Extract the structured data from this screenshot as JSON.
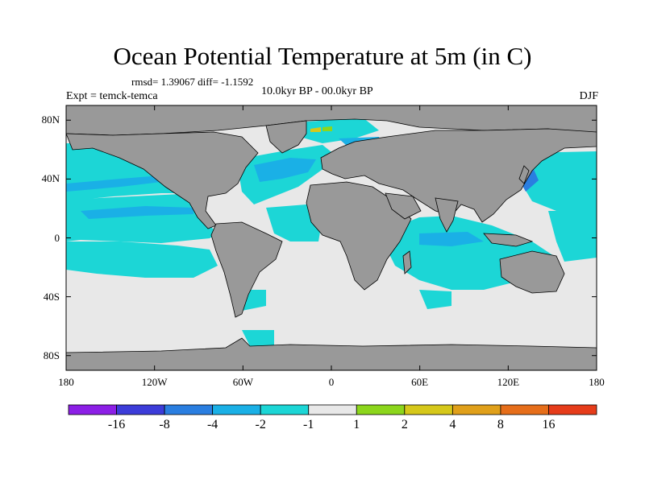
{
  "title": "Ocean Potential Temperature at 5m (in C)",
  "stats": "rmsd= 1.39067 diff= -1.1592",
  "experiment": "Expt = temck-temca",
  "period": "10.0kyr BP - 00.0kyr BP",
  "season": "DJF",
  "map": {
    "lon_range": [
      -180,
      180
    ],
    "lat_range": [
      -90,
      90
    ],
    "ocean_default_color": "#e8e8e8",
    "land_color": "#999999",
    "x_ticks": [
      {
        "lon": -180,
        "label": "180"
      },
      {
        "lon": -120,
        "label": "120W"
      },
      {
        "lon": -60,
        "label": "60W"
      },
      {
        "lon": 0,
        "label": "0"
      },
      {
        "lon": 60,
        "label": "60E"
      },
      {
        "lon": 120,
        "label": "120E"
      },
      {
        "lon": 180,
        "label": "180"
      }
    ],
    "y_ticks": [
      {
        "lat": 80,
        "label": "80N"
      },
      {
        "lat": 40,
        "label": "40N"
      },
      {
        "lat": 0,
        "label": "0"
      },
      {
        "lat": -40,
        "label": "40S"
      },
      {
        "lat": -80,
        "label": "80S"
      }
    ]
  },
  "colorbar": {
    "colors": [
      "#8c1fe6",
      "#3c3cd9",
      "#2a7ee0",
      "#1ab0e6",
      "#1cd6d6",
      "#e8e8e8",
      "#8cd61c",
      "#d6c81a",
      "#e0a01a",
      "#e66e1a",
      "#e63c1a"
    ],
    "labels": [
      "-16",
      "-8",
      "-4",
      "-2",
      "-1",
      "1",
      "2",
      "4",
      "8",
      "16"
    ]
  }
}
